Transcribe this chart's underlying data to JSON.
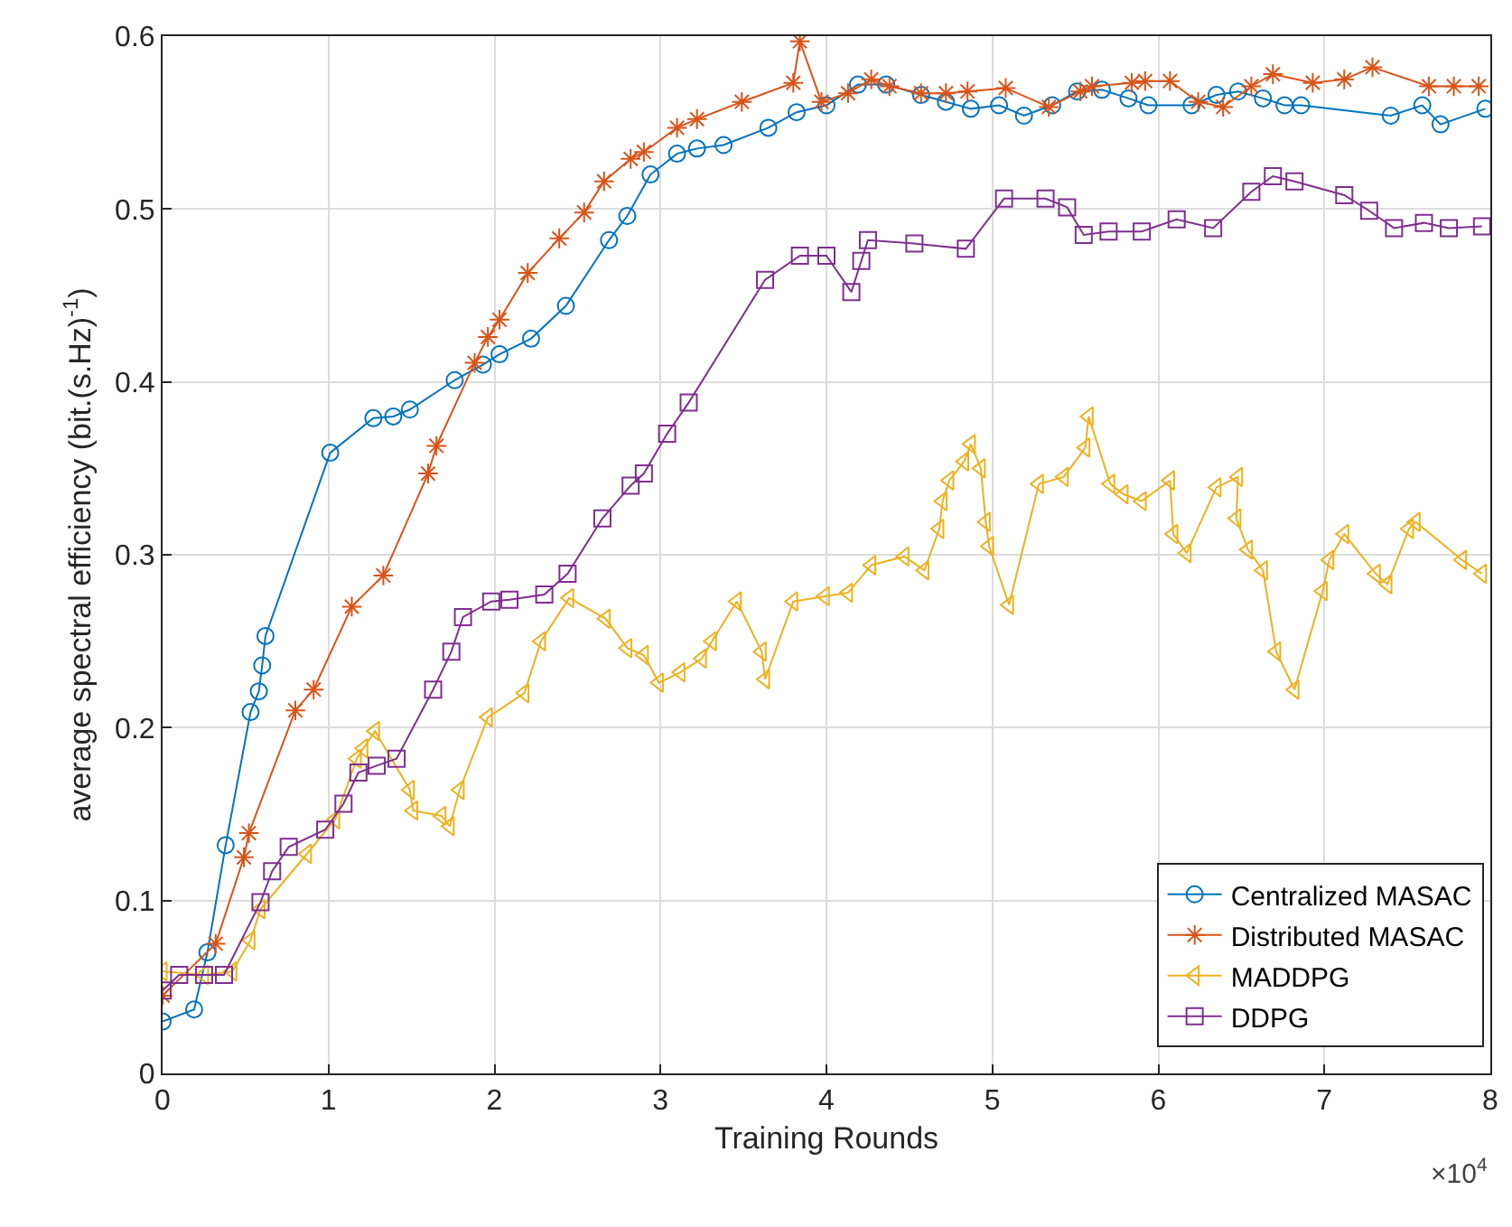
{
  "chart_data": {
    "type": "line",
    "xlabel": "Training Rounds",
    "ylabel": "average spectral efficiency (bit.(s.Hz)$^{-1}$)",
    "annotations": [
      "×10$^{4}$"
    ],
    "xlim": [
      0,
      8
    ],
    "xticks": [
      0,
      1,
      2,
      3,
      4,
      5,
      6,
      7,
      8
    ],
    "ylim": [
      0,
      0.6
    ],
    "yticks": [
      0,
      0.1,
      0.2,
      0.3,
      0.4,
      0.5,
      0.6
    ],
    "grid": true,
    "legend": "bottom right",
    "line_style": "solid",
    "series": [
      {
        "name": "Centralized MASAC",
        "color": "#0072bd",
        "marker": "circle",
        "x": [
          0,
          0.19,
          0.27,
          0.38,
          0.53,
          0.58,
          0.6,
          0.62,
          1.01,
          1.27,
          1.39,
          1.49,
          1.76,
          1.93,
          2.03,
          2.22,
          2.43,
          2.69,
          2.8,
          2.94,
          3.1,
          3.22,
          3.38,
          3.65,
          3.82,
          4.0,
          4.19,
          4.36,
          4.57,
          4.72,
          4.87,
          5.04,
          5.19,
          5.36,
          5.51,
          5.66,
          5.82,
          5.94,
          6.2,
          6.35,
          6.48,
          6.63,
          6.76,
          6.86,
          7.4,
          7.59,
          7.7,
          7.97
        ],
        "values": [
          0.03,
          0.037,
          0.07,
          0.132,
          0.209,
          0.221,
          0.236,
          0.253,
          0.359,
          0.379,
          0.38,
          0.384,
          0.401,
          0.41,
          0.416,
          0.425,
          0.444,
          0.482,
          0.496,
          0.52,
          0.532,
          0.535,
          0.537,
          0.547,
          0.556,
          0.56,
          0.572,
          0.572,
          0.566,
          0.562,
          0.558,
          0.56,
          0.554,
          0.56,
          0.568,
          0.569,
          0.564,
          0.56,
          0.56,
          0.566,
          0.568,
          0.564,
          0.56,
          0.56,
          0.554,
          0.56,
          0.549,
          0.558
        ]
      },
      {
        "name": "Distributed MASAC",
        "color": "#d95319",
        "marker": "cross",
        "x": [
          0,
          0.32,
          0.49,
          0.52,
          0.8,
          0.91,
          1.14,
          1.33,
          1.6,
          1.65,
          1.88,
          1.96,
          2.03,
          2.2,
          2.39,
          2.54,
          2.66,
          2.82,
          2.9,
          3.1,
          3.22,
          3.49,
          3.8,
          3.84,
          3.97,
          4.13,
          4.27,
          4.38,
          4.57,
          4.72,
          4.85,
          5.08,
          5.34,
          5.53,
          5.6,
          5.84,
          5.92,
          6.07,
          6.24,
          6.39,
          6.56,
          6.69,
          6.93,
          7.12,
          7.29,
          7.63,
          7.78,
          7.93
        ],
        "values": [
          0.045,
          0.075,
          0.125,
          0.139,
          0.21,
          0.222,
          0.27,
          0.288,
          0.347,
          0.363,
          0.411,
          0.426,
          0.436,
          0.463,
          0.483,
          0.498,
          0.516,
          0.529,
          0.533,
          0.547,
          0.552,
          0.562,
          0.573,
          0.597,
          0.562,
          0.567,
          0.575,
          0.571,
          0.567,
          0.567,
          0.568,
          0.57,
          0.559,
          0.568,
          0.571,
          0.573,
          0.574,
          0.574,
          0.562,
          0.559,
          0.571,
          0.578,
          0.573,
          0.575,
          0.582,
          0.571,
          0.571,
          0.571
        ]
      },
      {
        "name": "MADDPG",
        "color": "#edb120",
        "marker": "triangle",
        "x": [
          0,
          0.25,
          0.42,
          0.53,
          0.59,
          0.87,
          1.04,
          1.17,
          1.21,
          1.28,
          1.49,
          1.51,
          1.68,
          1.73,
          1.79,
          1.96,
          2.18,
          2.28,
          2.45,
          2.67,
          2.8,
          2.9,
          2.99,
          3.12,
          3.25,
          3.31,
          3.46,
          3.61,
          3.63,
          3.8,
          3.99,
          4.13,
          4.27,
          4.47,
          4.59,
          4.68,
          4.7,
          4.74,
          4.83,
          4.87,
          4.93,
          4.96,
          4.98,
          5.1,
          5.28,
          5.43,
          5.56,
          5.58,
          5.71,
          5.79,
          5.9,
          6.07,
          6.09,
          6.17,
          6.35,
          6.48,
          6.47,
          6.54,
          6.63,
          6.71,
          6.82,
          6.99,
          7.03,
          7.12,
          7.31,
          7.38,
          7.51,
          7.55,
          7.83,
          7.95
        ],
        "values": [
          0.059,
          0.057,
          0.059,
          0.077,
          0.095,
          0.127,
          0.147,
          0.182,
          0.188,
          0.198,
          0.164,
          0.152,
          0.149,
          0.143,
          0.164,
          0.206,
          0.22,
          0.25,
          0.275,
          0.263,
          0.246,
          0.242,
          0.226,
          0.232,
          0.24,
          0.25,
          0.273,
          0.244,
          0.228,
          0.273,
          0.276,
          0.278,
          0.294,
          0.299,
          0.291,
          0.315,
          0.331,
          0.343,
          0.354,
          0.364,
          0.35,
          0.319,
          0.305,
          0.271,
          0.341,
          0.345,
          0.362,
          0.38,
          0.341,
          0.335,
          0.331,
          0.343,
          0.312,
          0.301,
          0.339,
          0.345,
          0.321,
          0.303,
          0.291,
          0.244,
          0.222,
          0.279,
          0.297,
          0.312,
          0.289,
          0.283,
          0.315,
          0.319,
          0.297,
          0.289
        ]
      },
      {
        "name": "DDPG",
        "color": "#7e2f8e",
        "marker": "square",
        "x": [
          0,
          0.1,
          0.25,
          0.37,
          0.59,
          0.66,
          0.76,
          0.98,
          1.09,
          1.18,
          1.29,
          1.41,
          1.63,
          1.74,
          1.81,
          1.98,
          2.09,
          2.3,
          2.44,
          2.65,
          2.82,
          2.9,
          3.04,
          3.17,
          3.63,
          3.84,
          4.0,
          4.15,
          4.21,
          4.25,
          4.53,
          4.84,
          5.07,
          5.32,
          5.45,
          5.55,
          5.7,
          5.9,
          6.11,
          6.33,
          6.56,
          6.69,
          6.82,
          7.12,
          7.27,
          7.42,
          7.6,
          7.75,
          7.95
        ],
        "values": [
          0.048,
          0.057,
          0.057,
          0.057,
          0.099,
          0.117,
          0.131,
          0.141,
          0.156,
          0.174,
          0.178,
          0.182,
          0.222,
          0.244,
          0.264,
          0.273,
          0.274,
          0.277,
          0.289,
          0.321,
          0.34,
          0.347,
          0.37,
          0.388,
          0.459,
          0.473,
          0.473,
          0.452,
          0.47,
          0.482,
          0.48,
          0.477,
          0.506,
          0.506,
          0.501,
          0.485,
          0.487,
          0.487,
          0.494,
          0.489,
          0.51,
          0.519,
          0.516,
          0.508,
          0.499,
          0.489,
          0.492,
          0.489,
          0.49
        ]
      }
    ]
  }
}
